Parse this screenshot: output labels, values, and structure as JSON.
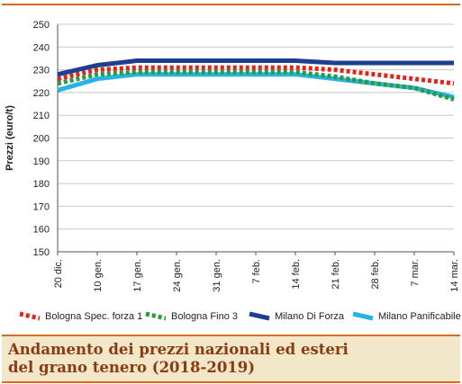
{
  "caption": {
    "line1": "Andamento dei prezzi nazionali ed esteri",
    "line2": "del grano tenero (2018-2019)"
  },
  "colors": {
    "accent": "#d96a1e",
    "caption_bg": "#f2e7c9",
    "caption_text": "#8a3b12"
  },
  "chart_data": {
    "type": "line",
    "title": "",
    "ylabel": "Prezzi (euro/t)",
    "xlabel": "",
    "ylim": [
      150,
      250
    ],
    "yticks": [
      150,
      160,
      170,
      180,
      190,
      200,
      210,
      220,
      230,
      240,
      250
    ],
    "grid": "horizontal",
    "legend_position": "bottom",
    "categories": [
      "20 dic.",
      "10 gen.",
      "17 gen.",
      "24 gen.",
      "31 gen.",
      "7 feb.",
      "14 feb.",
      "21 feb.",
      "28 feb.",
      "7 mar.",
      "14 mar."
    ],
    "series": [
      {
        "name": "Bologna Spec. forza 1",
        "color": "#e0261c",
        "style": "dotted",
        "values": [
          226,
          230,
          231,
          231,
          231,
          231,
          231,
          230,
          228,
          226,
          224
        ]
      },
      {
        "name": "Bologna Fino 3",
        "color": "#2e9a3e",
        "style": "dotted",
        "values": [
          224,
          228,
          229,
          229,
          229,
          229,
          229,
          227,
          224,
          222,
          217
        ]
      },
      {
        "name": "Milano Di Forza",
        "color": "#1c3f8f",
        "style": "solid",
        "values": [
          228,
          232,
          234,
          234,
          234,
          234,
          234,
          233,
          233,
          233,
          233
        ]
      },
      {
        "name": "Milano Panificabile",
        "color": "#27b3e6",
        "style": "solid",
        "values": [
          221,
          226,
          228,
          228,
          228,
          228,
          228,
          226,
          224,
          222,
          218
        ]
      }
    ]
  }
}
